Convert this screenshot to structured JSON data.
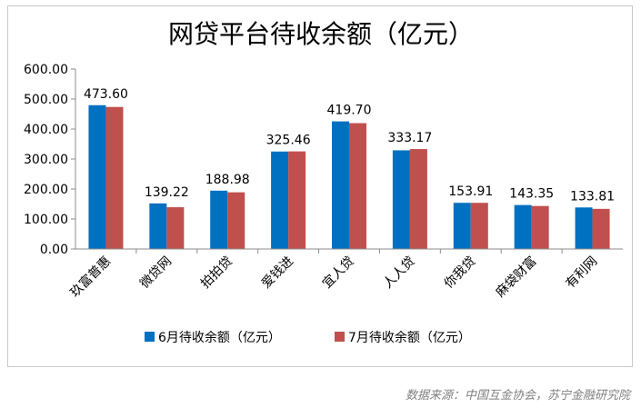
{
  "chart_data": {
    "type": "bar",
    "title": "网贷平台待收余额（亿元）",
    "categories": [
      "玖富普惠",
      "微贷网",
      "拍拍贷",
      "爱钱进",
      "宜人贷",
      "人人贷",
      "你我贷",
      "麻袋财富",
      "有利网"
    ],
    "series": [
      {
        "name": "6月待收余额（亿元）",
        "color": "#0070c0",
        "values": [
          479.5,
          152.0,
          194.5,
          325.0,
          425.5,
          329.0,
          154.0,
          146.5,
          138.5
        ]
      },
      {
        "name": "7月待收余额（亿元）",
        "color": "#c0504d",
        "values": [
          473.6,
          139.22,
          188.98,
          325.46,
          419.7,
          333.17,
          153.91,
          143.35,
          133.81
        ]
      }
    ],
    "data_labels": [
      "473.60",
      "139.22",
      "188.98",
      "325.46",
      "419.70",
      "333.17",
      "153.91",
      "143.35",
      "133.81"
    ],
    "yticks": [
      "0.00",
      "100.00",
      "200.00",
      "300.00",
      "400.00",
      "500.00",
      "600.00"
    ],
    "ylim": [
      0,
      600
    ],
    "grid": false,
    "legend_position": "bottom"
  },
  "source_note": "数据来源：中国互金协会，苏宁金融研究院"
}
